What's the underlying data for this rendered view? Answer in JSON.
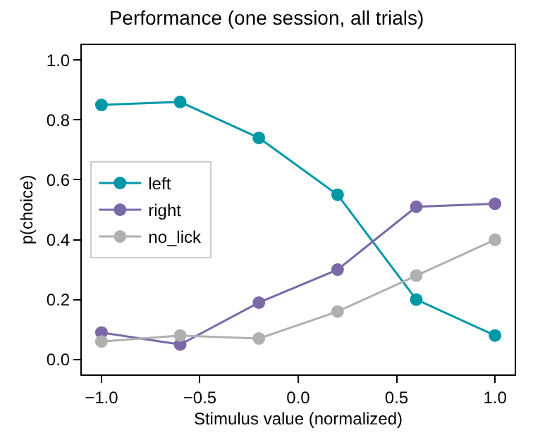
{
  "chart_data": {
    "type": "line",
    "title": "Performance (one session, all trials)",
    "xlabel": "Stimulus value (normalized)",
    "ylabel": "p(choice)",
    "x": [
      -1.0,
      -0.6,
      -0.2,
      0.2,
      0.6,
      1.0
    ],
    "series": [
      {
        "name": "left",
        "color": "#0097a7",
        "values": [
          0.85,
          0.86,
          0.74,
          0.55,
          0.2,
          0.08
        ]
      },
      {
        "name": "right",
        "color": "#7b68a6",
        "values": [
          0.09,
          0.05,
          0.19,
          0.3,
          0.51,
          0.52
        ]
      },
      {
        "name": "no_lick",
        "color": "#b0b0b0",
        "values": [
          0.06,
          0.08,
          0.07,
          0.16,
          0.28,
          0.4
        ]
      }
    ],
    "xlim": [
      -1.1,
      1.1
    ],
    "xticks": [
      {
        "value": -1,
        "label": "−1.0"
      },
      {
        "value": -0.5,
        "label": "−0.5"
      },
      {
        "value": 0,
        "label": "0.0"
      },
      {
        "value": 0.5,
        "label": "0.5"
      },
      {
        "value": 1,
        "label": "1.0"
      }
    ],
    "ylim": [
      -0.05,
      1.05
    ],
    "yticks": [
      {
        "value": 0,
        "label": "0.0"
      },
      {
        "value": 0.2,
        "label": "0.2"
      },
      {
        "value": 0.4,
        "label": "0.4"
      },
      {
        "value": 0.6,
        "label": "0.6"
      },
      {
        "value": 0.8,
        "label": "0.8"
      },
      {
        "value": 1,
        "label": "1.0"
      }
    ],
    "legend": "left",
    "marker": "circle",
    "line_style": "solid"
  }
}
